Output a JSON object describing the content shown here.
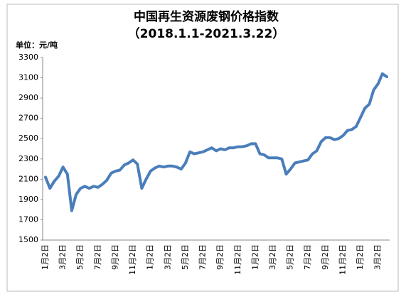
{
  "chart_data": {
    "type": "line",
    "title": "中国再生资源废钢价格指数",
    "subtitle": "（2018.1.1-2021.3.22）",
    "y_label": "单位：元/吨",
    "categories": [
      "1月2日",
      null,
      null,
      null,
      "3月2日",
      null,
      null,
      null,
      "5月2日",
      null,
      null,
      null,
      "7月2日",
      null,
      null,
      null,
      "9月2日",
      null,
      null,
      null,
      "11月2日",
      null,
      null,
      null,
      "1月2日",
      null,
      null,
      null,
      "3月2日",
      null,
      null,
      null,
      "5月2日",
      null,
      null,
      null,
      "7月2日",
      null,
      null,
      null,
      "9月2日",
      null,
      null,
      null,
      "11月2日",
      null,
      null,
      null,
      "1月2日",
      null,
      null,
      null,
      "3月2日",
      null,
      null,
      null,
      "5月2日",
      null,
      null,
      null,
      "7月2日",
      null,
      null,
      null,
      "9月2日",
      null,
      null,
      null,
      "11月2日",
      null,
      null,
      null,
      "1月2日",
      null,
      null,
      null,
      "3月2日",
      null,
      null
    ],
    "series": [
      {
        "color": "#4a7ebb",
        "values": [
          2120,
          2010,
          2080,
          2130,
          2220,
          2150,
          1790,
          1950,
          2010,
          2030,
          2010,
          2030,
          2020,
          2050,
          2090,
          2160,
          2180,
          2190,
          2240,
          2260,
          2290,
          2250,
          2010,
          2100,
          2180,
          2210,
          2230,
          2220,
          2230,
          2230,
          2220,
          2200,
          2260,
          2370,
          2350,
          2360,
          2370,
          2390,
          2410,
          2380,
          2400,
          2390,
          2410,
          2410,
          2420,
          2420,
          2430,
          2450,
          2450,
          2350,
          2340,
          2310,
          2310,
          2310,
          2300,
          2150,
          2200,
          2260,
          2270,
          2280,
          2290,
          2350,
          2380,
          2470,
          2510,
          2510,
          2490,
          2500,
          2530,
          2580,
          2590,
          2620,
          2710,
          2800,
          2840,
          2980,
          3040,
          3140,
          3110
        ]
      }
    ],
    "ylim": [
      1500,
      3300
    ],
    "yticks": [
      1500,
      1700,
      1900,
      2100,
      2300,
      2500,
      2700,
      2900,
      3100,
      3300
    ],
    "grid": false
  }
}
